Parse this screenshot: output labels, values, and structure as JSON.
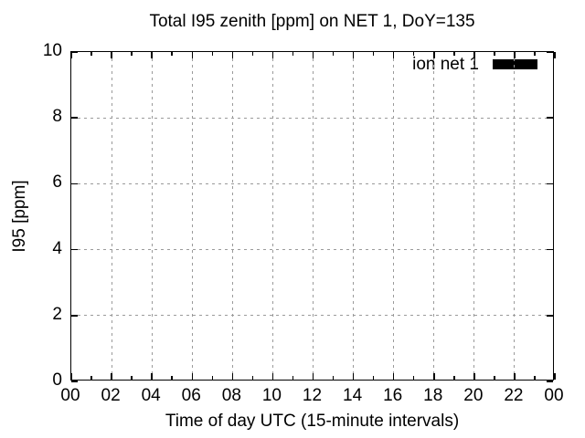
{
  "chart_data": {
    "type": "line",
    "title": "Total I95 zenith [ppm] on NET 1, DoY=135",
    "xlabel": "Time of day UTC (15-minute intervals)",
    "ylabel": "I95 [ppm]",
    "x_tick_labels": [
      "00",
      "02",
      "04",
      "06",
      "08",
      "10",
      "12",
      "14",
      "16",
      "18",
      "20",
      "22",
      "00"
    ],
    "x_minor_ticks_per_interval": 1,
    "y_tick_labels": [
      "0",
      "2",
      "4",
      "6",
      "8",
      "10"
    ],
    "xlim_hours": [
      0,
      24
    ],
    "ylim": [
      0,
      10
    ],
    "grid": true,
    "grid_style": "dotted",
    "legend_position": "top-right-inside",
    "series": [
      {
        "name": "ion net 1",
        "color": "#000000",
        "x": [],
        "values": []
      }
    ]
  },
  "colors": {
    "background": "#ffffff",
    "axis": "#000000",
    "grid": "#9a9a9a",
    "text": "#000000",
    "legend_sample": "#000000"
  }
}
